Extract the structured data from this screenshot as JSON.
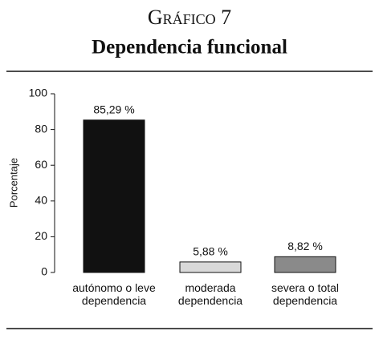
{
  "chart_data": {
    "type": "bar",
    "title": "Gráfico 7",
    "subtitle": "Dependencia funcional",
    "y_label": "Porcentaje",
    "categories": [
      "autónomo o leve dependencia",
      "moderada dependencia",
      "severa o total dependencia"
    ],
    "values": [
      85.29,
      5.88,
      8.82
    ],
    "value_labels": [
      "85,29 %",
      "5,88 %",
      "8,82 %"
    ],
    "colors": [
      "#111111",
      "#d9d9d9",
      "#8a8a8a"
    ],
    "ylim": [
      0,
      100
    ],
    "yticks": [
      0,
      20,
      40,
      60,
      80,
      100
    ],
    "grid": false
  }
}
